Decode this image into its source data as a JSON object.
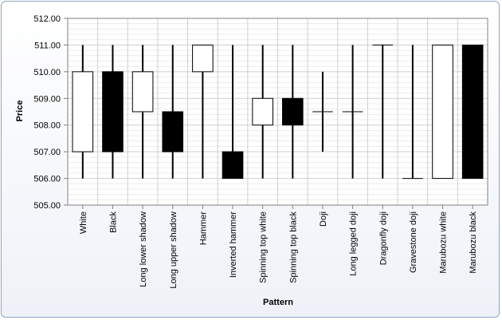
{
  "chart_data": {
    "type": "candlestick",
    "title": "",
    "xlabel": "Pattern",
    "ylabel": "Price",
    "ylim": [
      505,
      512
    ],
    "ytick_step": 1,
    "ytick_decimals": 2,
    "minor_grid_step": 0.2,
    "grid": true,
    "colors": {
      "up_fill": "#ffffff",
      "down_fill": "#000000",
      "stroke": "#000000",
      "plot_bg": "#ffffff",
      "major_grid": "#cfcfcf",
      "minor_grid": "#ececec",
      "axis": "#808080"
    },
    "categories": [
      "White",
      "Black",
      "Long lower shadow",
      "Long upper shadow",
      "Hammer",
      "Inverted hammer",
      "Spinning top white",
      "Spinning top black",
      "Doji",
      "Long legged doji",
      "Dragonfly doji",
      "Gravestone doji",
      "Marubozu white",
      "Marubozu black"
    ],
    "candles": [
      {
        "open": 507.0,
        "high": 511.0,
        "low": 506.0,
        "close": 510.0
      },
      {
        "open": 510.0,
        "high": 511.0,
        "low": 506.0,
        "close": 507.0
      },
      {
        "open": 508.5,
        "high": 511.0,
        "low": 506.0,
        "close": 510.0
      },
      {
        "open": 508.5,
        "high": 511.0,
        "low": 506.0,
        "close": 507.0
      },
      {
        "open": 510.0,
        "high": 511.0,
        "low": 506.0,
        "close": 511.0
      },
      {
        "open": 507.0,
        "high": 511.0,
        "low": 506.0,
        "close": 506.0
      },
      {
        "open": 508.0,
        "high": 511.0,
        "low": 506.0,
        "close": 509.0
      },
      {
        "open": 509.0,
        "high": 511.0,
        "low": 506.0,
        "close": 508.0
      },
      {
        "open": 508.5,
        "high": 510.0,
        "low": 507.0,
        "close": 508.5
      },
      {
        "open": 508.5,
        "high": 511.0,
        "low": 506.0,
        "close": 508.5
      },
      {
        "open": 511.0,
        "high": 511.0,
        "low": 506.0,
        "close": 511.0
      },
      {
        "open": 506.0,
        "high": 511.0,
        "low": 506.0,
        "close": 506.0
      },
      {
        "open": 506.0,
        "high": 511.0,
        "low": 506.0,
        "close": 511.0
      },
      {
        "open": 511.0,
        "high": 511.0,
        "low": 506.0,
        "close": 506.0
      }
    ]
  }
}
